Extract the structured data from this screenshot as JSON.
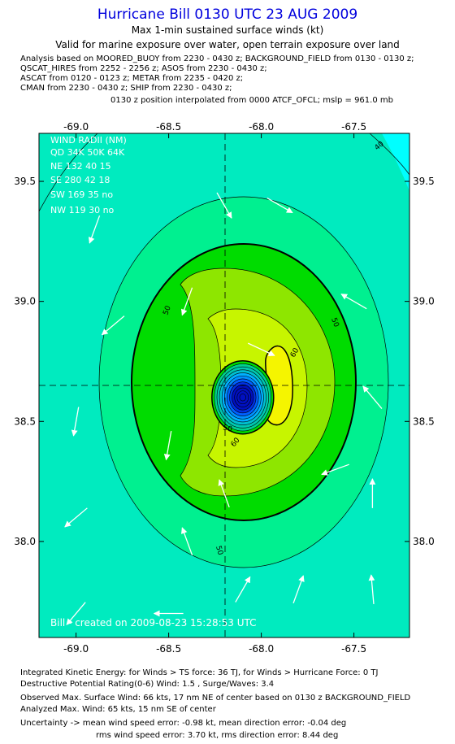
{
  "header": {
    "title": "Hurricane Bill 0130 UTC 23 AUG 2009",
    "subtitle1": "Max 1-min sustained surface winds (kt)",
    "subtitle2": "Valid for marine exposure over water, open terrain exposure over land",
    "analysis": [
      "Analysis based on  MOORED_BUOY from 2230 - 0430 z;  BACKGROUND_FIELD from 0130 - 0130 z;",
      "QSCAT_HIRES from 2252 - 2256 z;  ASOS from 2230 - 0430 z;",
      "ASCAT from 0120 - 0123 z;  METAR from 2235 - 0420 z;",
      "CMAN from 2230 - 0430 z;  SHIP from 2230 - 0430 z;"
    ],
    "position_note": "0130 z position interpolated from 0000 ATCF_OFCL; mslp = 961.0 mb"
  },
  "chart_data": {
    "type": "contour",
    "xlim": [
      -69.2,
      -67.2
    ],
    "ylim": [
      37.6,
      39.7
    ],
    "x_ticks": [
      -69.0,
      -68.5,
      -68.0,
      -67.5
    ],
    "x_tick_labels": [
      "-69.0",
      "-68.5",
      "-68.0",
      "-67.5"
    ],
    "y_ticks": [
      38.0,
      38.5,
      39.0,
      39.5
    ],
    "y_tick_labels": [
      "38.0",
      "38.5",
      "39.0",
      "39.5"
    ],
    "center": {
      "lon": -68.1,
      "lat": 38.6
    },
    "contour_labels": [
      "40",
      "50",
      "50",
      "50",
      "50",
      "60",
      "60"
    ],
    "contour_levels": [
      34,
      40,
      50,
      55,
      60,
      64
    ],
    "colors": {
      "background": "#00ebbf",
      "band40": "#00f090",
      "band50": "#00dc00",
      "band55": "#8ee600",
      "band60": "#c7f500",
      "band64": "#f5f500",
      "corner": "#00ffff",
      "eye": "#00b0ff",
      "title": "#0000dd"
    },
    "wind_radii": {
      "header": "WIND RADII (NM)",
      "columns": [
        "QD",
        "34K",
        "50K",
        "64K"
      ],
      "rows": [
        [
          "NE",
          "132",
          "40",
          "15"
        ],
        [
          "SE",
          "280",
          "42",
          "18"
        ],
        [
          "SW",
          "169",
          "35",
          "no"
        ],
        [
          "NW",
          "119",
          "30",
          "no"
        ]
      ]
    },
    "credit": "Bill - created on 2009-08-23 15:28:53 UTC",
    "vectors": [
      {
        "lon": -68.2,
        "lat": 39.4,
        "dir": 150
      },
      {
        "lon": -67.9,
        "lat": 39.4,
        "dir": 120
      },
      {
        "lon": -68.4,
        "lat": 39.0,
        "dir": 200
      },
      {
        "lon": -68.8,
        "lat": 38.9,
        "dir": 230
      },
      {
        "lon": -67.5,
        "lat": 39.0,
        "dir": 300
      },
      {
        "lon": -68.0,
        "lat": 38.8,
        "dir": 115
      },
      {
        "lon": -68.5,
        "lat": 38.4,
        "dir": 190
      },
      {
        "lon": -69.0,
        "lat": 38.5,
        "dir": 190
      },
      {
        "lon": -67.6,
        "lat": 38.3,
        "dir": 250
      },
      {
        "lon": -68.4,
        "lat": 38.0,
        "dir": 340
      },
      {
        "lon": -69.0,
        "lat": 38.1,
        "dir": 230
      },
      {
        "lon": -67.8,
        "lat": 37.8,
        "dir": 20
      },
      {
        "lon": -68.1,
        "lat": 37.8,
        "dir": 30
      },
      {
        "lon": -68.5,
        "lat": 37.7,
        "dir": 270
      },
      {
        "lon": -69.0,
        "lat": 37.7,
        "dir": 220
      },
      {
        "lon": -67.4,
        "lat": 37.8,
        "dir": 355
      },
      {
        "lon": -67.4,
        "lat": 38.2,
        "dir": 0
      },
      {
        "lon": -67.4,
        "lat": 38.6,
        "dir": 320
      },
      {
        "lon": -68.2,
        "lat": 38.2,
        "dir": 340
      },
      {
        "lon": -68.9,
        "lat": 39.3,
        "dir": 200
      }
    ]
  },
  "footer": {
    "line1": "Integrated Kinetic Energy:  for Winds > TS force: 36 TJ,  for Winds > Hurricane Force: 0 TJ",
    "line2": "Destructive Potential Rating(0-6)   Wind: 1.5 , Surge/Waves: 3.4",
    "line3": "Observed Max. Surface Wind: 66 kts, 17 nm NE of center based on 0130 z BACKGROUND_FIELD",
    "line4": "Analyzed Max. Wind: 65 kts, 15 nm SE of center",
    "line5": "Uncertainty -> mean wind speed error:  -0.98 kt,   mean direction error:  -0.04 deg",
    "line6": "rms wind speed error: 3.70 kt,   rms direction error: 8.44 deg"
  }
}
